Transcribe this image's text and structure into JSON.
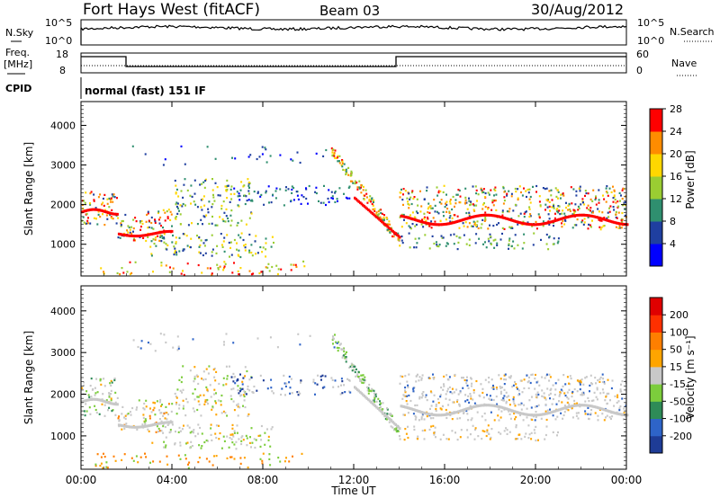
{
  "header": {
    "station": "Fort Hays West (fitACF)",
    "beam": "Beam 03",
    "date": "30/Aug/2012"
  },
  "top_panels": {
    "nsky_label": "N.Sky",
    "nsearch_label": "N.Search",
    "noise_ticks": [
      "10^5",
      "10^0"
    ],
    "freq_label_1": "Freq.",
    "freq_label_2": "[MHz]",
    "freq_ticks": [
      "18",
      "8"
    ],
    "nave_label": "Nave",
    "nave_ticks": [
      "60",
      "0"
    ],
    "cpid_label": "CPID",
    "cpid_value": "normal (fast) 151 IF"
  },
  "chart_data": [
    {
      "type": "heatmap",
      "title": "",
      "ylabel": "Slant Range [km]",
      "xlabel": "",
      "ylim": [
        200,
        4600
      ],
      "yticks": [
        1000,
        2000,
        3000,
        4000
      ],
      "colorbar": {
        "label": "Power [dB]",
        "ticks": [
          "4",
          "8",
          "12",
          "16",
          "20",
          "24",
          "28"
        ],
        "colors": [
          "#0000ff",
          "#1f3fa0",
          "#2f8f6f",
          "#9acd32",
          "#ffd700",
          "#ff8c00",
          "#ff0000"
        ]
      }
    },
    {
      "type": "heatmap",
      "title": "",
      "ylabel": "Slant Range [km]",
      "xlabel": "Time UT",
      "ylim": [
        200,
        4600
      ],
      "yticks": [
        1000,
        2000,
        3000,
        4000
      ],
      "xticks": [
        "00:00",
        "04:00",
        "08:00",
        "12:00",
        "16:00",
        "20:00",
        "00:00"
      ],
      "colorbar": {
        "label": "Velocity [m s⁻¹]",
        "ticks": [
          "200",
          "100",
          "50",
          "15",
          "-15",
          "-50",
          "-100",
          "-200"
        ],
        "colors": [
          "#1e3c96",
          "#2e64c8",
          "#2e8b57",
          "#7ccd3c",
          "#c8c8c8",
          "#ffa500",
          "#ff7f00",
          "#ff3000",
          "#e00000"
        ]
      }
    }
  ]
}
